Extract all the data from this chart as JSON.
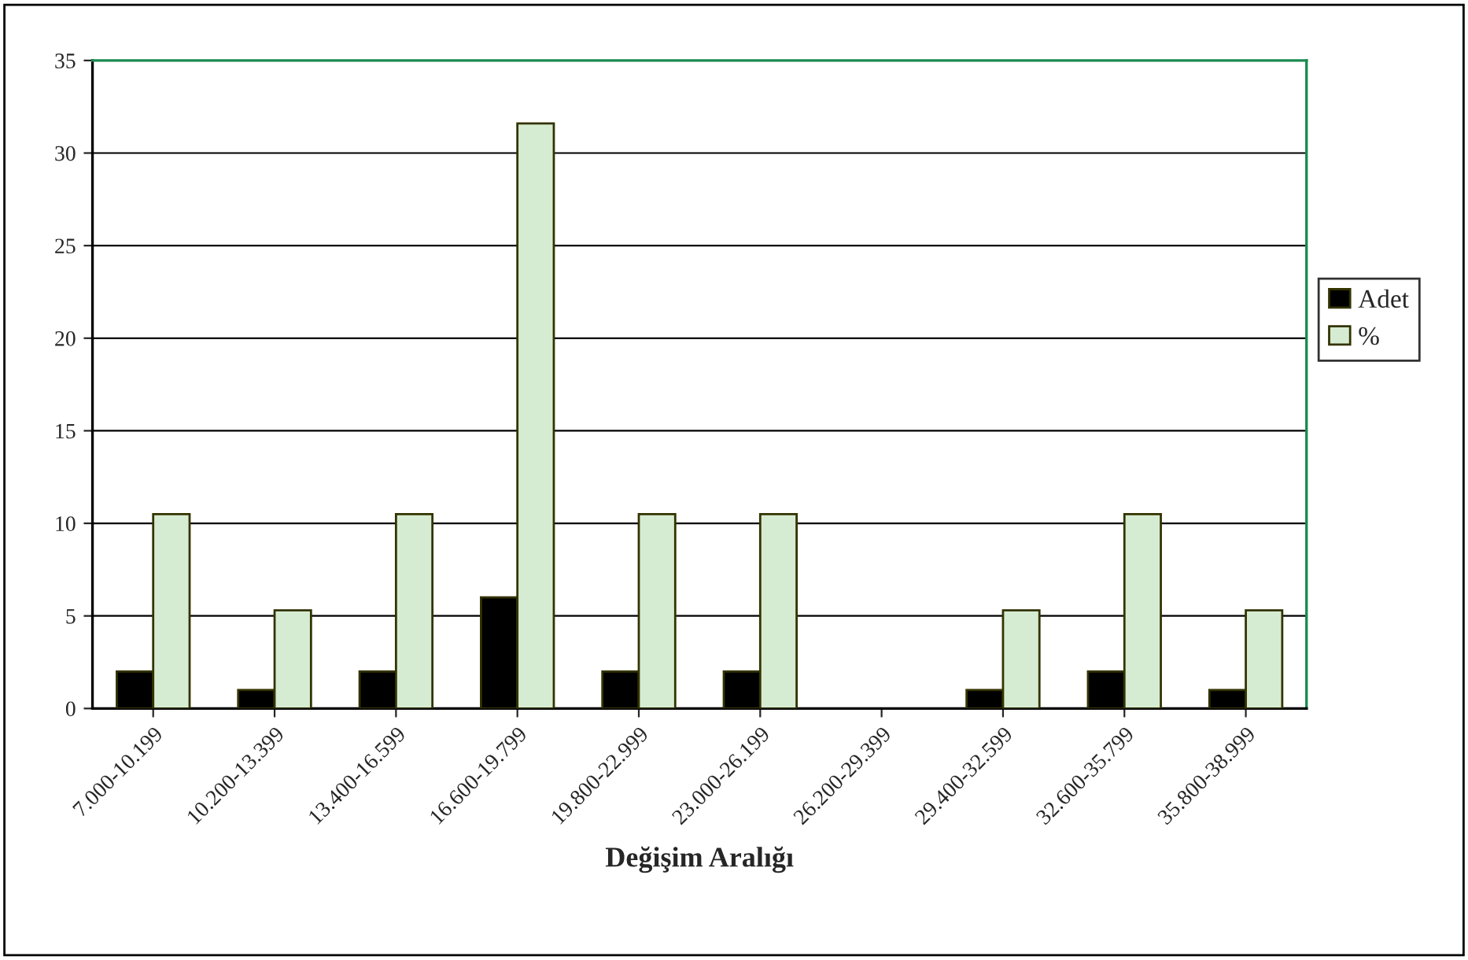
{
  "chart_data": {
    "type": "bar",
    "xlabel": "Değişim Aralığı",
    "categories": [
      "7.000-10.199",
      "10.200-13.399",
      "13.400-16.599",
      "16.600-19.799",
      "19.800-22.999",
      "23.000-26.199",
      "26.200-29.399",
      "29.400-32.599",
      "32.600-35.799",
      "35.800-38.999"
    ],
    "series": [
      {
        "name": "Adet",
        "color": "#000000",
        "values": [
          2,
          1,
          2,
          6,
          2,
          2,
          0,
          1,
          2,
          1
        ]
      },
      {
        "name": "%",
        "color": "#d6ecd2",
        "values": [
          10.5,
          5.3,
          10.5,
          31.6,
          10.5,
          10.5,
          0,
          5.3,
          10.5,
          5.3
        ]
      }
    ],
    "ylim": [
      0,
      35
    ],
    "yticks": [
      0,
      5,
      10,
      15,
      20,
      25,
      30,
      35
    ],
    "grid": "y",
    "legend": "right"
  }
}
